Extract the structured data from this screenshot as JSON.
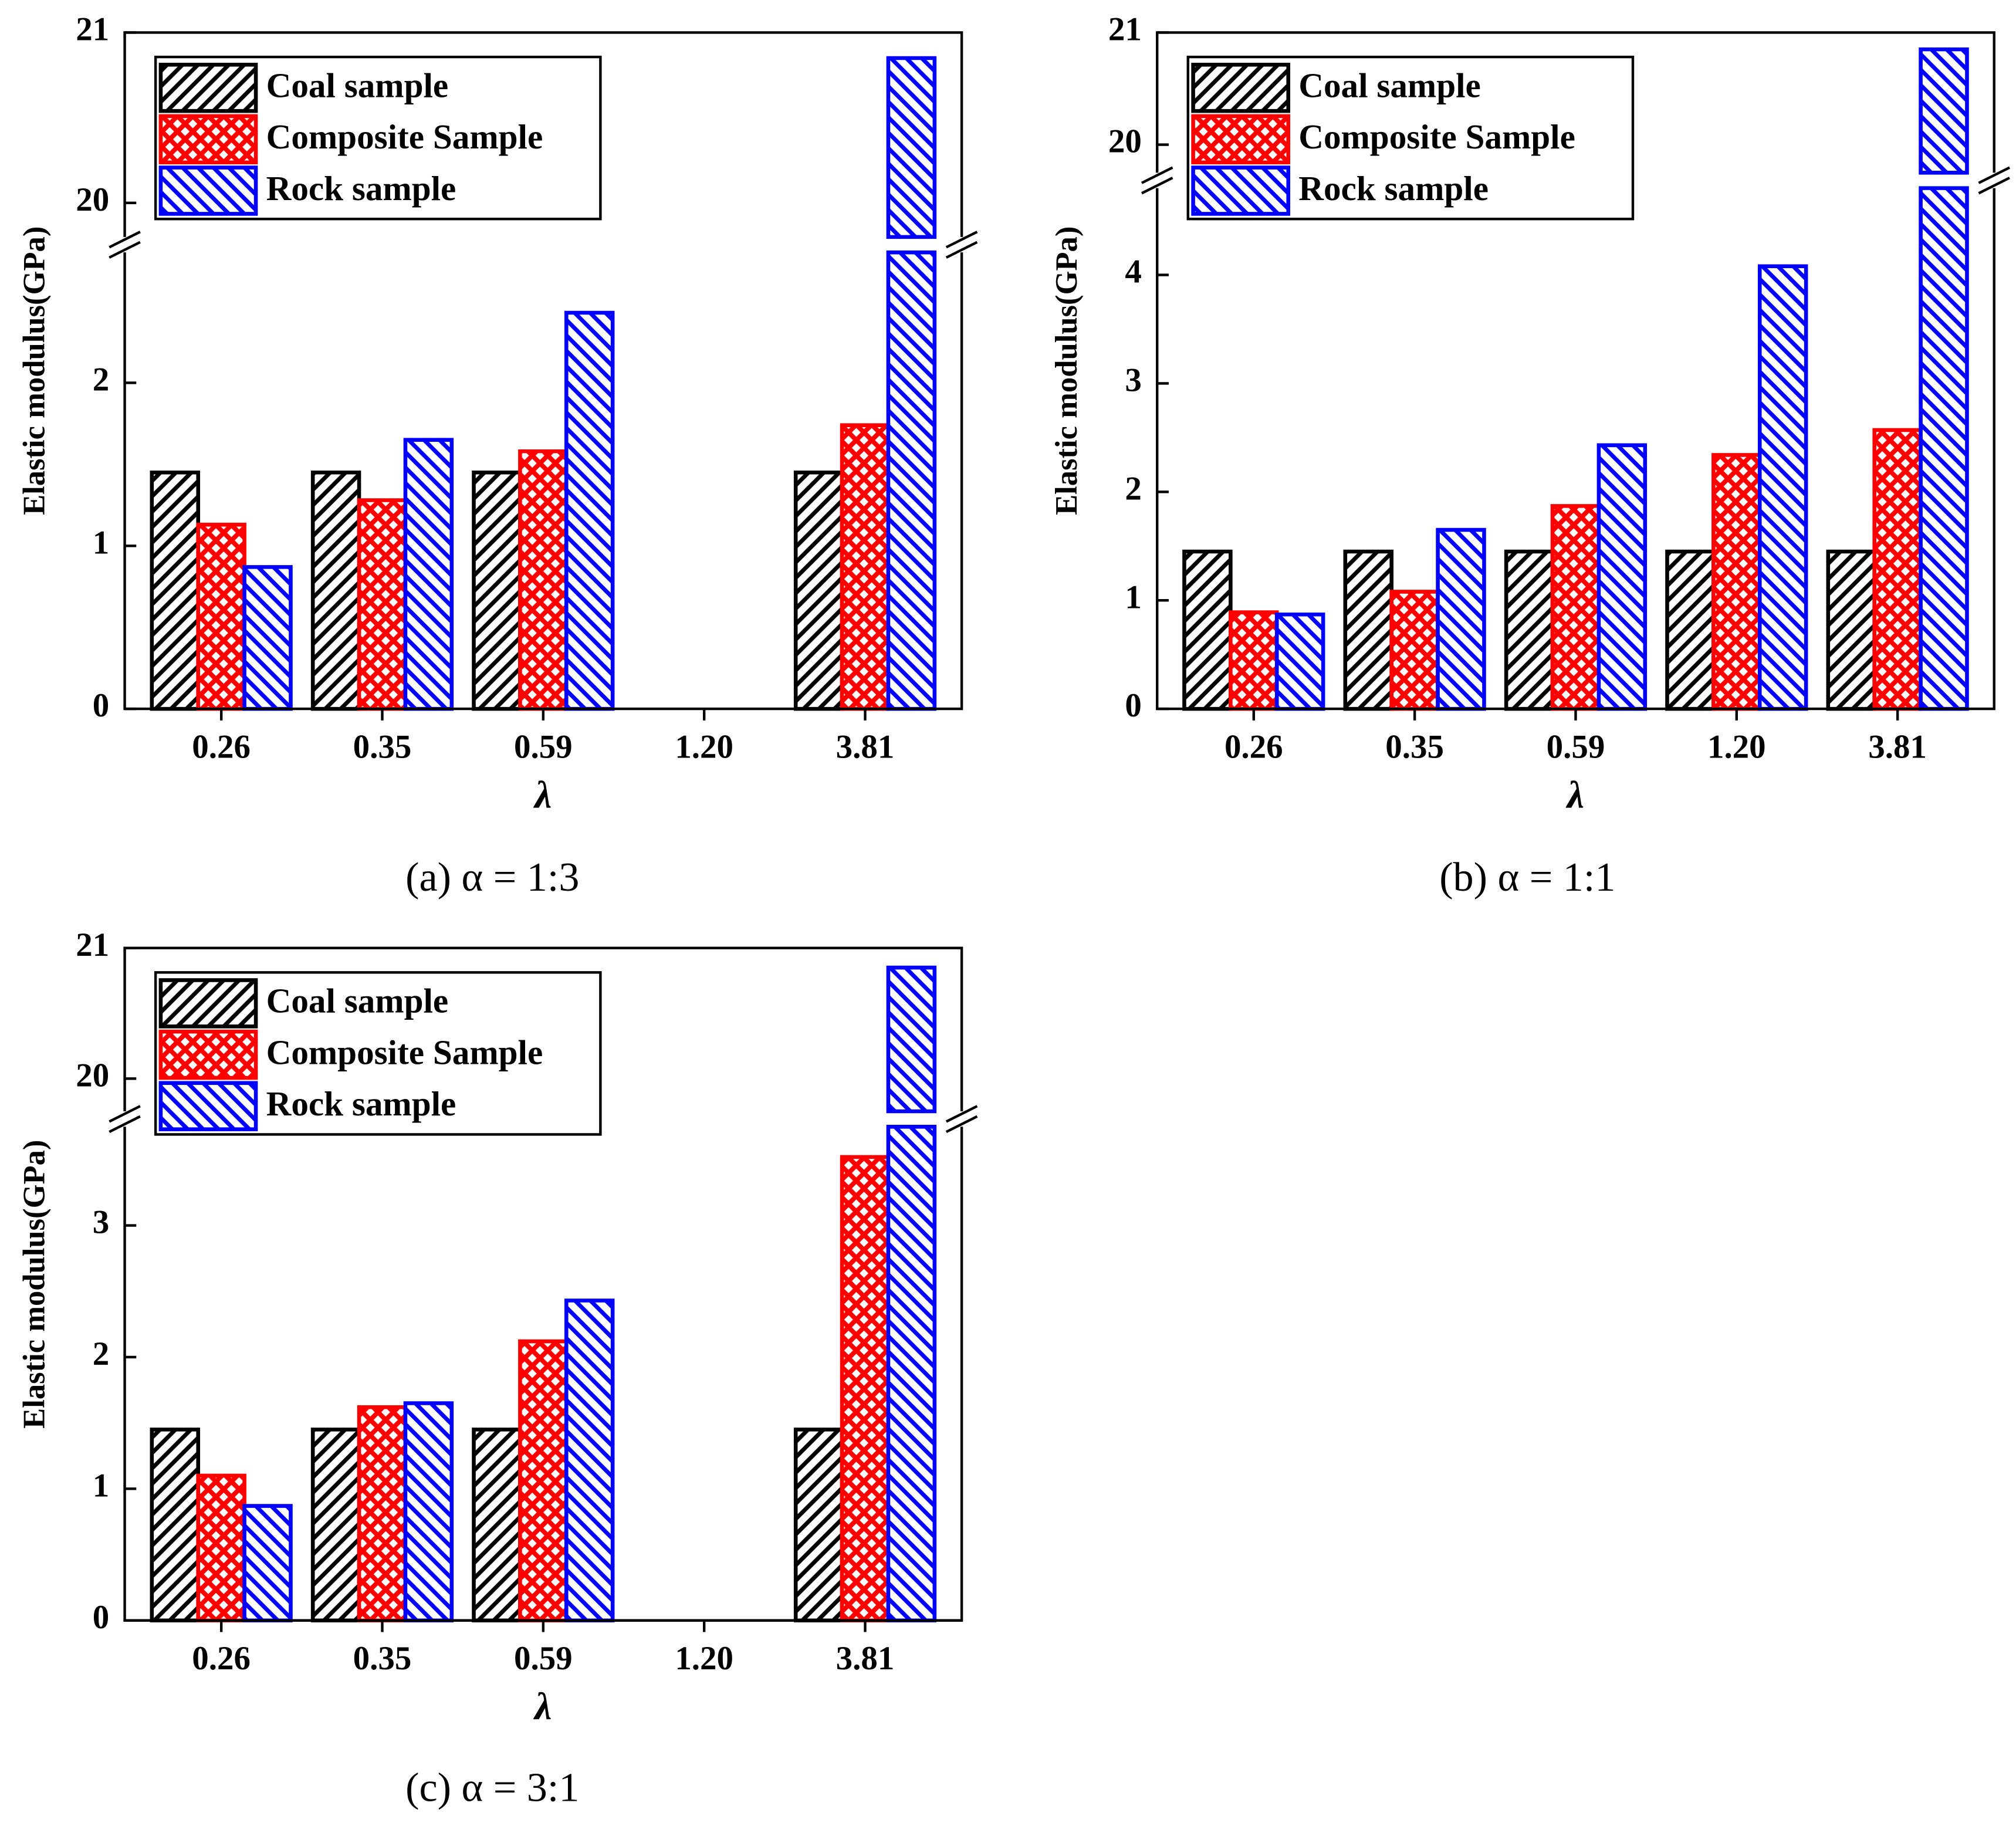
{
  "chart_data": [
    {
      "type": "bar",
      "caption": "(a) α = 1:3",
      "xlabel": "λ",
      "ylabel": "Elastic modulus(GPa)",
      "categories": [
        "0.26",
        "0.35",
        "0.59",
        "1.20",
        "3.81"
      ],
      "ylim": [
        0,
        21
      ],
      "ybreak": [
        2.8,
        19.8
      ],
      "yticks": [
        0,
        1,
        2,
        20,
        21
      ],
      "legend": "upper left",
      "series": [
        {
          "name": "Coal sample",
          "color": "#000000",
          "hatch": "/",
          "values": [
            1.45,
            1.45,
            1.45,
            null,
            1.45
          ]
        },
        {
          "name": "Composite Sample",
          "color": "#ff0000",
          "hatch": "x",
          "values": [
            1.13,
            1.28,
            1.58,
            null,
            1.74
          ]
        },
        {
          "name": "Rock sample",
          "color": "#0000ff",
          "hatch": "\\",
          "values": [
            0.87,
            1.65,
            2.43,
            null,
            20.85
          ]
        }
      ]
    },
    {
      "type": "bar",
      "caption": "(b) α = 1:1",
      "xlabel": "λ",
      "ylabel": "Elastic modulus(GPa)",
      "categories": [
        "0.26",
        "0.35",
        "0.59",
        "1.20",
        "3.81"
      ],
      "ylim": [
        0,
        21
      ],
      "ybreak": [
        4.8,
        19.75
      ],
      "yticks": [
        0,
        1,
        2,
        3,
        4,
        20,
        21
      ],
      "legend": "upper left",
      "series": [
        {
          "name": "Coal sample",
          "color": "#000000",
          "hatch": "/",
          "values": [
            1.45,
            1.45,
            1.45,
            1.45,
            1.45
          ]
        },
        {
          "name": "Composite Sample",
          "color": "#ff0000",
          "hatch": "x",
          "values": [
            0.89,
            1.08,
            1.87,
            2.34,
            2.57
          ]
        },
        {
          "name": "Rock sample",
          "color": "#0000ff",
          "hatch": "\\",
          "values": [
            0.87,
            1.65,
            2.43,
            4.08,
            20.85
          ]
        }
      ]
    },
    {
      "type": "bar",
      "caption": "(c) α = 3:1",
      "xlabel": "λ",
      "ylabel": "Elastic modulus(GPa)",
      "categories": [
        "0.26",
        "0.35",
        "0.59",
        "1.20",
        "3.81"
      ],
      "ylim": [
        0,
        21
      ],
      "ybreak": [
        3.75,
        19.75
      ],
      "yticks": [
        0,
        1,
        2,
        3,
        20,
        21
      ],
      "legend": "upper left",
      "series": [
        {
          "name": "Coal sample",
          "color": "#000000",
          "hatch": "/",
          "values": [
            1.45,
            1.45,
            1.45,
            null,
            1.45
          ]
        },
        {
          "name": "Composite Sample",
          "color": "#ff0000",
          "hatch": "x",
          "values": [
            1.1,
            1.62,
            2.12,
            null,
            3.52
          ]
        },
        {
          "name": "Rock sample",
          "color": "#0000ff",
          "hatch": "\\",
          "values": [
            0.87,
            1.65,
            2.43,
            null,
            20.85
          ]
        }
      ]
    }
  ]
}
